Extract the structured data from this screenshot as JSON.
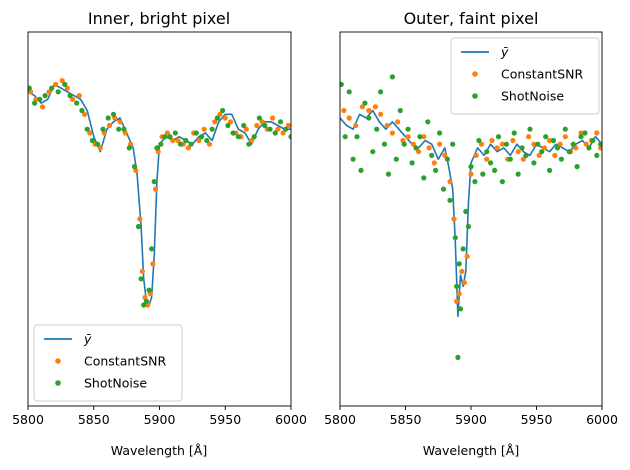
{
  "chart_data": [
    {
      "type": "line",
      "title": "Inner, bright pixel",
      "xlabel": "Wavelength [Å]",
      "xlim": [
        5800,
        6000
      ],
      "ylim": [
        0.0,
        1.0
      ],
      "xticks": [
        5800,
        5850,
        5900,
        5950,
        6000
      ],
      "yticks_visible": false,
      "legend": {
        "placement": "lower-left"
      },
      "series": [
        {
          "name": "ȳ",
          "style": "line",
          "color": "#1f77b4",
          "x": [
            5800,
            5805,
            5810,
            5815,
            5820,
            5825,
            5830,
            5835,
            5840,
            5845,
            5850,
            5855,
            5860,
            5865,
            5870,
            5875,
            5880,
            5883,
            5886,
            5888,
            5890,
            5892,
            5894,
            5896,
            5898,
            5900,
            5905,
            5910,
            5915,
            5920,
            5925,
            5930,
            5935,
            5940,
            5945,
            5950,
            5955,
            5960,
            5965,
            5970,
            5975,
            5980,
            5985,
            5990,
            5995,
            6000
          ],
          "y": [
            0.84,
            0.83,
            0.81,
            0.82,
            0.86,
            0.85,
            0.84,
            0.83,
            0.82,
            0.79,
            0.72,
            0.68,
            0.74,
            0.76,
            0.77,
            0.73,
            0.69,
            0.62,
            0.48,
            0.34,
            0.28,
            0.27,
            0.29,
            0.4,
            0.6,
            0.7,
            0.72,
            0.71,
            0.72,
            0.71,
            0.7,
            0.72,
            0.73,
            0.71,
            0.76,
            0.78,
            0.78,
            0.74,
            0.73,
            0.7,
            0.74,
            0.76,
            0.76,
            0.75,
            0.74,
            0.74
          ]
        },
        {
          "name": "ConstantSNR",
          "style": "points",
          "color": "#ff7f0e",
          "x": [
            5802,
            5806,
            5811,
            5816,
            5821,
            5826,
            5830,
            5834,
            5839,
            5843,
            5847,
            5851,
            5855,
            5858,
            5862,
            5866,
            5870,
            5874,
            5878,
            5882,
            5885,
            5887,
            5889,
            5891,
            5893,
            5895,
            5897,
            5899,
            5902,
            5906,
            5910,
            5914,
            5918,
            5922,
            5926,
            5930,
            5934,
            5938,
            5942,
            5946,
            5950,
            5954,
            5958,
            5962,
            5966,
            5970,
            5974,
            5978,
            5982,
            5986,
            5990,
            5994,
            5998
          ],
          "y": [
            0.84,
            0.82,
            0.8,
            0.84,
            0.86,
            0.87,
            0.85,
            0.82,
            0.83,
            0.78,
            0.73,
            0.7,
            0.69,
            0.73,
            0.75,
            0.77,
            0.76,
            0.73,
            0.7,
            0.63,
            0.5,
            0.36,
            0.29,
            0.27,
            0.3,
            0.38,
            0.58,
            0.68,
            0.72,
            0.73,
            0.71,
            0.71,
            0.7,
            0.69,
            0.73,
            0.71,
            0.74,
            0.7,
            0.76,
            0.78,
            0.77,
            0.76,
            0.73,
            0.72,
            0.74,
            0.71,
            0.75,
            0.76,
            0.74,
            0.77,
            0.74,
            0.73,
            0.75
          ]
        },
        {
          "name": "ShotNoise",
          "style": "points",
          "color": "#2ca02c",
          "x": [
            5801,
            5805,
            5809,
            5813,
            5818,
            5823,
            5828,
            5832,
            5837,
            5841,
            5845,
            5849,
            5853,
            5857,
            5861,
            5865,
            5869,
            5873,
            5877,
            5881,
            5884,
            5886,
            5888,
            5890,
            5892,
            5894,
            5896,
            5898,
            5901,
            5904,
            5908,
            5912,
            5916,
            5920,
            5924,
            5928,
            5932,
            5936,
            5940,
            5944,
            5948,
            5952,
            5956,
            5960,
            5964,
            5968,
            5972,
            5976,
            5980,
            5984,
            5988,
            5992,
            5996,
            6000
          ],
          "y": [
            0.85,
            0.81,
            0.82,
            0.83,
            0.85,
            0.84,
            0.86,
            0.83,
            0.81,
            0.79,
            0.74,
            0.71,
            0.7,
            0.74,
            0.77,
            0.78,
            0.74,
            0.74,
            0.69,
            0.64,
            0.48,
            0.34,
            0.27,
            0.28,
            0.31,
            0.42,
            0.6,
            0.69,
            0.7,
            0.72,
            0.72,
            0.73,
            0.7,
            0.71,
            0.7,
            0.73,
            0.72,
            0.71,
            0.74,
            0.77,
            0.79,
            0.75,
            0.73,
            0.72,
            0.75,
            0.7,
            0.72,
            0.77,
            0.75,
            0.74,
            0.73,
            0.76,
            0.74,
            0.72
          ]
        }
      ]
    },
    {
      "type": "line",
      "title": "Outer, faint pixel",
      "xlabel": "Wavelength [Å]",
      "xlim": [
        5800,
        6000
      ],
      "ylim": [
        0.0,
        1.0
      ],
      "xticks": [
        5800,
        5850,
        5900,
        5950,
        6000
      ],
      "yticks_visible": false,
      "legend": {
        "placement": "upper-right"
      },
      "series": [
        {
          "name": "ȳ",
          "style": "line",
          "color": "#1f77b4",
          "x": [
            5800,
            5805,
            5810,
            5815,
            5820,
            5825,
            5830,
            5835,
            5840,
            5845,
            5850,
            5855,
            5860,
            5865,
            5870,
            5875,
            5880,
            5883,
            5886,
            5888,
            5890,
            5892,
            5894,
            5896,
            5898,
            5900,
            5905,
            5910,
            5915,
            5920,
            5925,
            5930,
            5935,
            5940,
            5945,
            5950,
            5955,
            5960,
            5965,
            5970,
            5975,
            5980,
            5985,
            5990,
            5995,
            6000
          ],
          "y": [
            0.77,
            0.75,
            0.74,
            0.78,
            0.77,
            0.79,
            0.76,
            0.74,
            0.76,
            0.74,
            0.72,
            0.7,
            0.69,
            0.71,
            0.7,
            0.66,
            0.69,
            0.64,
            0.58,
            0.44,
            0.24,
            0.35,
            0.32,
            0.36,
            0.54,
            0.65,
            0.69,
            0.67,
            0.7,
            0.68,
            0.69,
            0.67,
            0.7,
            0.68,
            0.67,
            0.7,
            0.69,
            0.68,
            0.7,
            0.69,
            0.68,
            0.7,
            0.71,
            0.69,
            0.72,
            0.7
          ]
        },
        {
          "name": "ConstantSNR",
          "style": "points",
          "color": "#ff7f0e",
          "x": [
            5803,
            5807,
            5812,
            5817,
            5822,
            5827,
            5831,
            5836,
            5840,
            5844,
            5848,
            5852,
            5856,
            5860,
            5864,
            5868,
            5872,
            5876,
            5880,
            5884,
            5887,
            5889,
            5891,
            5893,
            5895,
            5897,
            5900,
            5904,
            5908,
            5912,
            5916,
            5920,
            5924,
            5928,
            5932,
            5936,
            5940,
            5944,
            5948,
            5952,
            5956,
            5960,
            5964,
            5968,
            5972,
            5976,
            5980,
            5984,
            5988,
            5992,
            5996,
            5999
          ],
          "y": [
            0.79,
            0.77,
            0.75,
            0.8,
            0.79,
            0.8,
            0.78,
            0.75,
            0.73,
            0.76,
            0.71,
            0.72,
            0.7,
            0.68,
            0.72,
            0.69,
            0.65,
            0.7,
            0.67,
            0.6,
            0.5,
            0.28,
            0.3,
            0.36,
            0.33,
            0.4,
            0.62,
            0.67,
            0.7,
            0.66,
            0.71,
            0.69,
            0.7,
            0.66,
            0.71,
            0.68,
            0.66,
            0.72,
            0.7,
            0.67,
            0.69,
            0.71,
            0.67,
            0.7,
            0.72,
            0.68,
            0.69,
            0.73,
            0.7,
            0.71,
            0.73,
            0.69
          ]
        },
        {
          "name": "ShotNoise",
          "style": "points",
          "color": "#2ca02c",
          "x": [
            5801,
            5804,
            5807,
            5810,
            5813,
            5816,
            5819,
            5822,
            5825,
            5828,
            5831,
            5834,
            5837,
            5840,
            5843,
            5846,
            5849,
            5852,
            5855,
            5858,
            5861,
            5864,
            5867,
            5870,
            5873,
            5876,
            5879,
            5882,
            5884,
            5886,
            5888,
            5889,
            5890,
            5891,
            5892,
            5894,
            5896,
            5898,
            5900,
            5903,
            5906,
            5909,
            5912,
            5915,
            5918,
            5921,
            5924,
            5927,
            5930,
            5933,
            5936,
            5939,
            5942,
            5945,
            5948,
            5951,
            5954,
            5957,
            5960,
            5963,
            5966,
            5969,
            5972,
            5975,
            5978,
            5981,
            5984,
            5987,
            5990,
            5993,
            5996,
            5999
          ],
          "y": [
            0.86,
            0.72,
            0.84,
            0.66,
            0.72,
            0.63,
            0.81,
            0.77,
            0.68,
            0.74,
            0.84,
            0.7,
            0.62,
            0.88,
            0.66,
            0.79,
            0.7,
            0.74,
            0.65,
            0.69,
            0.72,
            0.61,
            0.76,
            0.67,
            0.63,
            0.73,
            0.58,
            0.66,
            0.55,
            0.7,
            0.45,
            0.32,
            0.13,
            0.38,
            0.26,
            0.42,
            0.52,
            0.48,
            0.64,
            0.6,
            0.71,
            0.62,
            0.68,
            0.65,
            0.63,
            0.72,
            0.6,
            0.7,
            0.66,
            0.73,
            0.62,
            0.69,
            0.67,
            0.74,
            0.65,
            0.7,
            0.68,
            0.72,
            0.63,
            0.71,
            0.69,
            0.66,
            0.74,
            0.68,
            0.7,
            0.64,
            0.72,
            0.73,
            0.69,
            0.71,
            0.67,
            0.7
          ]
        }
      ]
    }
  ]
}
